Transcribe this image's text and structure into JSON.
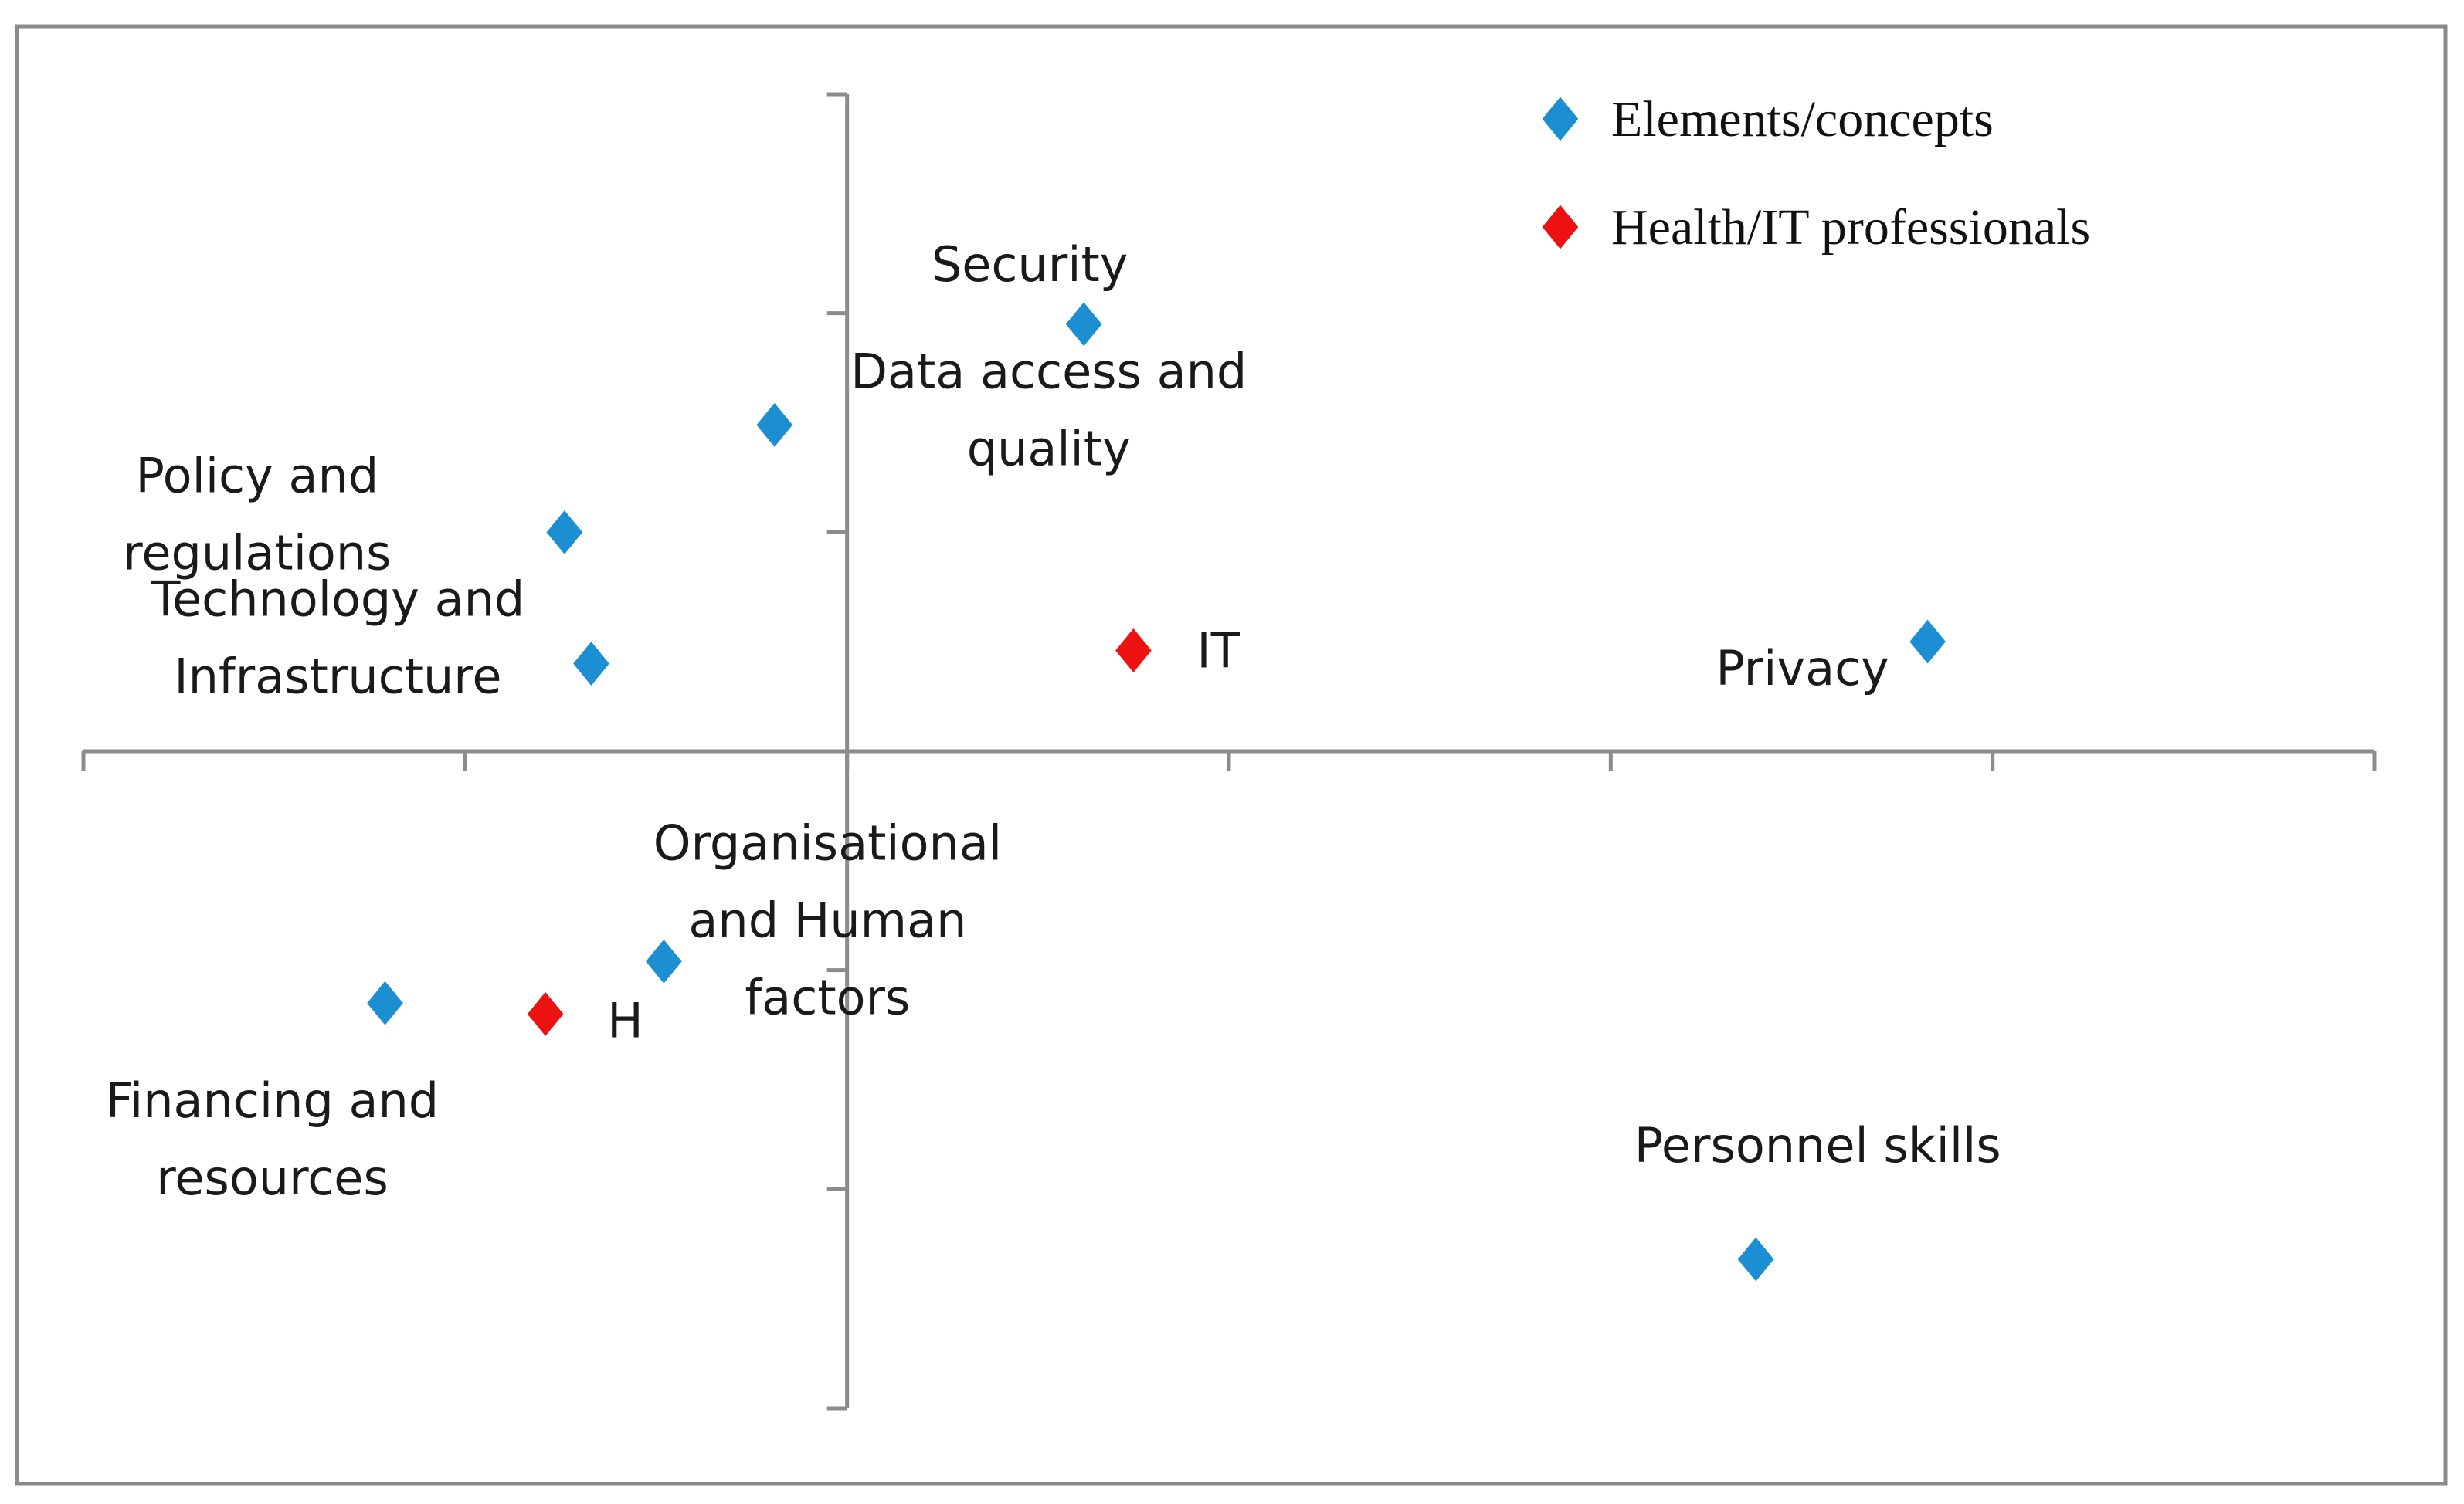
{
  "chart_data": {
    "type": "scatter",
    "title": "",
    "xlabel": "",
    "ylabel": "",
    "xlim": [
      -2,
      4
    ],
    "ylim": [
      -3,
      3
    ],
    "grid": false,
    "legend_position": "top-right",
    "series": [
      {
        "name": "Elements/concepts",
        "color": "#1b8fd1",
        "points": [
          {
            "x": 0.62,
            "y": 1.95,
            "label": "Security"
          },
          {
            "x": -0.19,
            "y": 1.49,
            "label": "Data access and quality"
          },
          {
            "x": -0.74,
            "y": 1.0,
            "label": "Policy and regulations"
          },
          {
            "x": -0.67,
            "y": 0.4,
            "label": "Technology and Infrastructure"
          },
          {
            "x": 2.83,
            "y": 0.5,
            "label": "Privacy"
          },
          {
            "x": -0.48,
            "y": -0.96,
            "label": "Organisational and Human factors"
          },
          {
            "x": -1.21,
            "y": -1.15,
            "label": "Financing and resources"
          },
          {
            "x": 2.38,
            "y": -2.32,
            "label": "Personnel skills"
          }
        ]
      },
      {
        "name": "Health/IT professionals",
        "color": "#ee1111",
        "points": [
          {
            "x": 0.75,
            "y": 0.46,
            "label": "IT"
          },
          {
            "x": -0.79,
            "y": -1.2,
            "label": "H"
          }
        ]
      }
    ]
  }
}
